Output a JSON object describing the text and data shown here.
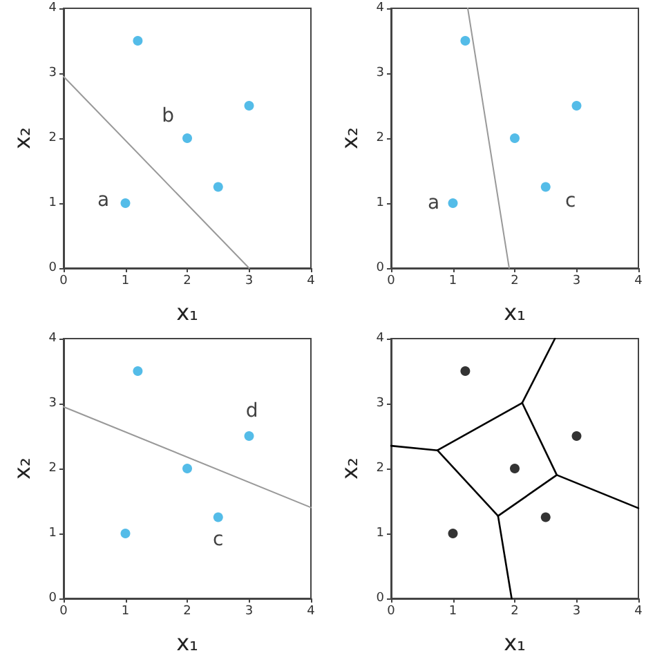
{
  "chart_data": [
    {
      "type": "scatter",
      "xlabel": "x₁",
      "ylabel": "x₂",
      "xlim": [
        0,
        4
      ],
      "ylim": [
        0,
        4
      ],
      "xticks": [
        0,
        1,
        2,
        3,
        4
      ],
      "yticks": [
        0,
        1,
        2,
        3,
        4
      ],
      "grid": false,
      "marker": "circle",
      "x": [
        1,
        1.2,
        2,
        2.5,
        3
      ],
      "series": [
        {
          "color": "#29abe2",
          "values": [
            1,
            3.5,
            2,
            1.25,
            2.5
          ],
          "value_labels": [
            "a",
            null,
            "b",
            null,
            null
          ]
        },
        {
          "type": "line",
          "marker": "none",
          "line_style": "solid",
          "color": "#999999",
          "x": [
            0,
            3
          ],
          "values": [
            2.95,
            0
          ]
        }
      ]
    },
    {
      "type": "scatter",
      "xlabel": "x₁",
      "ylabel": "x₂",
      "xlim": [
        0,
        4
      ],
      "ylim": [
        0,
        4
      ],
      "xticks": [
        0,
        1,
        2,
        3,
        4
      ],
      "yticks": [
        0,
        1,
        2,
        3,
        4
      ],
      "grid": false,
      "marker": "circle",
      "x": [
        1,
        1.2,
        2,
        2.5,
        3
      ],
      "series": [
        {
          "color": "#29abe2",
          "values": [
            1,
            3.5,
            2,
            1.25,
            2.5
          ],
          "value_labels": [
            "a",
            null,
            null,
            "c",
            null
          ]
        },
        {
          "type": "line",
          "marker": "none",
          "line_style": "solid",
          "color": "#999999",
          "x": [
            1.24,
            1.91
          ],
          "values": [
            4,
            0
          ]
        }
      ]
    },
    {
      "type": "scatter",
      "xlabel": "x₁",
      "ylabel": "x₂",
      "xlim": [
        0,
        4
      ],
      "ylim": [
        0,
        4
      ],
      "xticks": [
        0,
        1,
        2,
        3,
        4
      ],
      "yticks": [
        0,
        1,
        2,
        3,
        4
      ],
      "grid": false,
      "marker": "circle",
      "x": [
        1,
        1.2,
        2,
        2.5,
        3
      ],
      "series": [
        {
          "color": "#29abe2",
          "values": [
            1,
            3.5,
            2,
            1.25,
            2.5
          ],
          "value_labels": [
            null,
            null,
            null,
            "c",
            "d"
          ]
        },
        {
          "type": "line",
          "marker": "none",
          "line_style": "solid",
          "color": "#999999",
          "x": [
            0,
            4
          ],
          "values": [
            2.95,
            1.4
          ]
        }
      ]
    },
    {
      "type": "scatter",
      "xlabel": "x₁",
      "ylabel": "x₂",
      "xlim": [
        0,
        4
      ],
      "ylim": [
        0,
        4
      ],
      "xticks": [
        0,
        1,
        2,
        3,
        4
      ],
      "yticks": [
        0,
        1,
        2,
        3,
        4
      ],
      "grid": false,
      "marker": "circle",
      "x": [
        1,
        1.2,
        2,
        2.5,
        3
      ],
      "series": [
        {
          "color": "#000000",
          "values": [
            1,
            3.5,
            2,
            1.25,
            2.5
          ]
        },
        {
          "type": "line",
          "marker": "none",
          "line_style": "solid",
          "color": "#000000",
          "x": [
            0.75,
            2.12
          ],
          "values": [
            2.28,
            3.01
          ]
        },
        {
          "type": "line",
          "marker": "none",
          "line_style": "solid",
          "color": "#000000",
          "x": [
            2.12,
            2.68
          ],
          "values": [
            3.01,
            1.9
          ]
        },
        {
          "type": "line",
          "marker": "none",
          "line_style": "solid",
          "color": "#000000",
          "x": [
            1.73,
            2.68
          ],
          "values": [
            1.27,
            1.9
          ]
        },
        {
          "type": "line",
          "marker": "none",
          "line_style": "solid",
          "color": "#000000",
          "x": [
            0.75,
            1.73
          ],
          "values": [
            2.28,
            1.27
          ]
        },
        {
          "type": "line",
          "marker": "none",
          "line_style": "solid",
          "color": "#000000",
          "x": [
            0,
            0.75
          ],
          "values": [
            2.35,
            2.28
          ]
        },
        {
          "type": "line",
          "marker": "none",
          "line_style": "solid",
          "color": "#000000",
          "x": [
            2.12,
            2.65
          ],
          "values": [
            3.01,
            4
          ]
        },
        {
          "type": "line",
          "marker": "none",
          "line_style": "solid",
          "color": "#000000",
          "x": [
            2.68,
            4
          ],
          "values": [
            1.9,
            1.39
          ]
        },
        {
          "type": "line",
          "marker": "none",
          "line_style": "solid",
          "color": "#000000",
          "x": [
            1.73,
            1.95
          ],
          "values": [
            1.27,
            0
          ]
        }
      ]
    }
  ]
}
